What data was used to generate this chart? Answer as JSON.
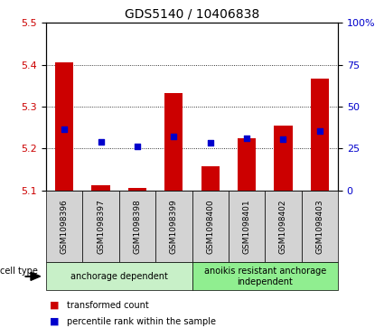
{
  "title": "GDS5140 / 10406838",
  "samples": [
    "GSM1098396",
    "GSM1098397",
    "GSM1098398",
    "GSM1098399",
    "GSM1098400",
    "GSM1098401",
    "GSM1098402",
    "GSM1098403"
  ],
  "red_values": [
    5.405,
    5.112,
    5.105,
    5.332,
    5.158,
    5.225,
    5.255,
    5.368
  ],
  "blue_values": [
    5.245,
    5.215,
    5.205,
    5.228,
    5.213,
    5.224,
    5.222,
    5.242
  ],
  "ylim_left": [
    5.1,
    5.5
  ],
  "ylim_right": [
    0,
    100
  ],
  "yticks_left": [
    5.1,
    5.2,
    5.3,
    5.4,
    5.5
  ],
  "yticks_right": [
    0,
    25,
    50,
    75,
    100
  ],
  "ytick_labels_right": [
    "0",
    "25",
    "50",
    "75",
    "100%"
  ],
  "groups": [
    {
      "label": "anchorage dependent",
      "indices": [
        0,
        1,
        2,
        3
      ],
      "color": "#c8f0c8"
    },
    {
      "label": "anoikis resistant anchorage\nindependent",
      "indices": [
        4,
        5,
        6,
        7
      ],
      "color": "#90ee90"
    }
  ],
  "bar_color": "#cc0000",
  "dot_color": "#0000cc",
  "bar_width": 0.5,
  "cell_type_label": "cell type",
  "legend_items": [
    {
      "color": "#cc0000",
      "label": "transformed count"
    },
    {
      "color": "#0000cc",
      "label": "percentile rank within the sample"
    }
  ],
  "tick_color_left": "#cc0000",
  "tick_color_right": "#0000cc",
  "bg_color": "#d3d3d3",
  "plot_bg": "white"
}
